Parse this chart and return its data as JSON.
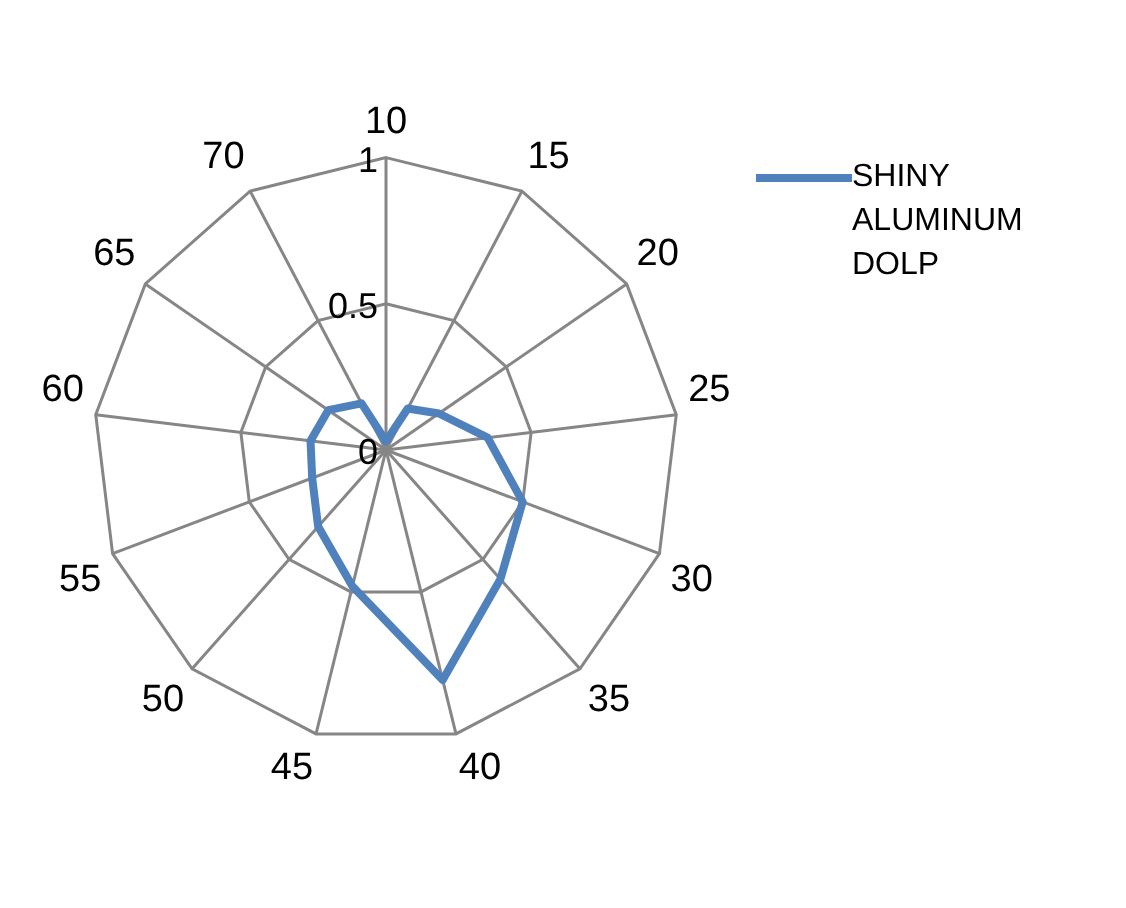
{
  "chart_data": {
    "type": "radar",
    "categories": [
      "10",
      "15",
      "20",
      "25",
      "30",
      "35",
      "40",
      "45",
      "50",
      "55",
      "60",
      "65",
      "70"
    ],
    "series": [
      {
        "name": "SHINY ALUMINUM DOLP",
        "color": "#4f81bd",
        "values": [
          0.03,
          0.16,
          0.22,
          0.35,
          0.5,
          0.59,
          0.81,
          0.48,
          0.35,
          0.27,
          0.26,
          0.24,
          0.18
        ]
      }
    ],
    "ylim": [
      0,
      1
    ],
    "yticks": [
      0,
      0.5,
      1
    ],
    "grid": true,
    "legend": "right"
  }
}
